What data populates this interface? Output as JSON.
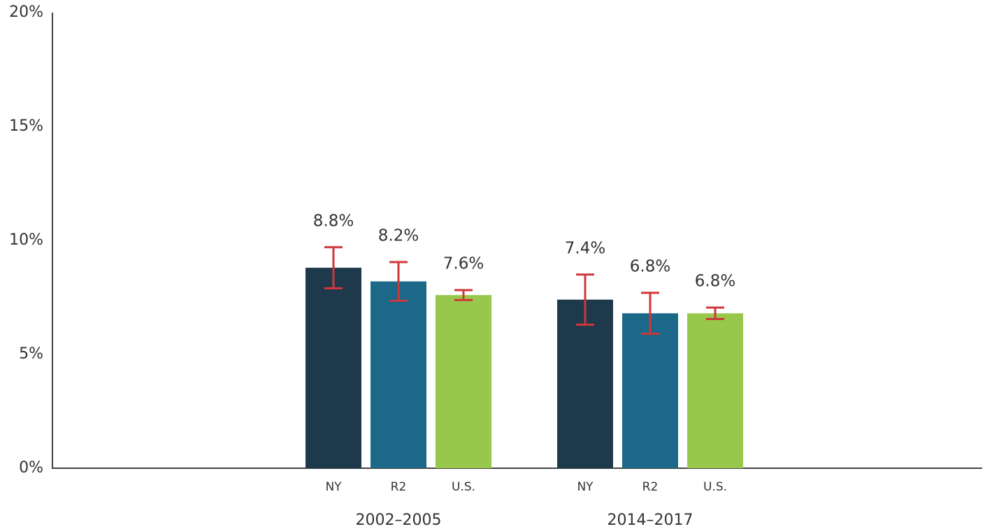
{
  "chart_data": {
    "type": "bar",
    "categories": [
      "2002–2005",
      "2014–2017"
    ],
    "series": [
      {
        "name": "NY",
        "color": "#1e384c",
        "values": [
          8.8,
          7.4
        ],
        "value_labels": [
          "8.8%",
          "7.4%"
        ],
        "errors": [
          0.9,
          1.1
        ]
      },
      {
        "name": "R2",
        "color": "#1b6888",
        "values": [
          8.2,
          6.8
        ],
        "value_labels": [
          "8.2%",
          "6.8%"
        ],
        "errors": [
          0.85,
          0.9
        ]
      },
      {
        "name": "U.S.",
        "color": "#97c84c",
        "values": [
          7.6,
          6.8
        ],
        "value_labels": [
          "7.6%",
          "6.8%"
        ],
        "errors": [
          0.22,
          0.25
        ]
      }
    ],
    "error_color": "#d0363a",
    "ylim": [
      0,
      20
    ],
    "yticks": [
      {
        "value": 0,
        "label": "0%"
      },
      {
        "value": 5,
        "label": "5%"
      },
      {
        "value": 10,
        "label": "10%"
      },
      {
        "value": 15,
        "label": "15%"
      },
      {
        "value": 20,
        "label": "20%"
      }
    ],
    "grid": false
  }
}
